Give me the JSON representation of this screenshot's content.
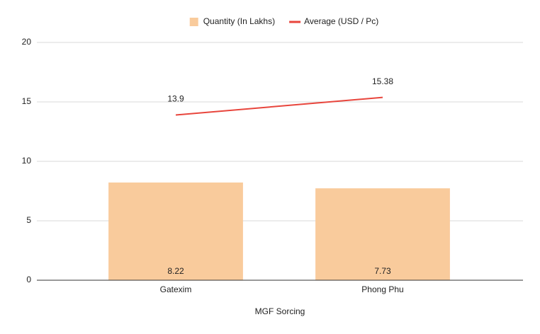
{
  "chart_data": {
    "type": "combo",
    "x_label": "MGF Sorcing",
    "categories": [
      "Gatexim",
      "Phong Phu"
    ],
    "series": [
      {
        "name": "Quantity (In Lakhs)",
        "type": "bar",
        "color": "#f9cb9c",
        "values": [
          8.22,
          7.73
        ]
      },
      {
        "name": "Average (USD / Pc)",
        "type": "line",
        "color": "#e8453c",
        "values": [
          13.9,
          15.38
        ]
      }
    ],
    "ylim": [
      0,
      20
    ],
    "yticks": [
      0,
      5,
      10,
      15,
      20
    ],
    "grid": true,
    "legend": "top"
  }
}
